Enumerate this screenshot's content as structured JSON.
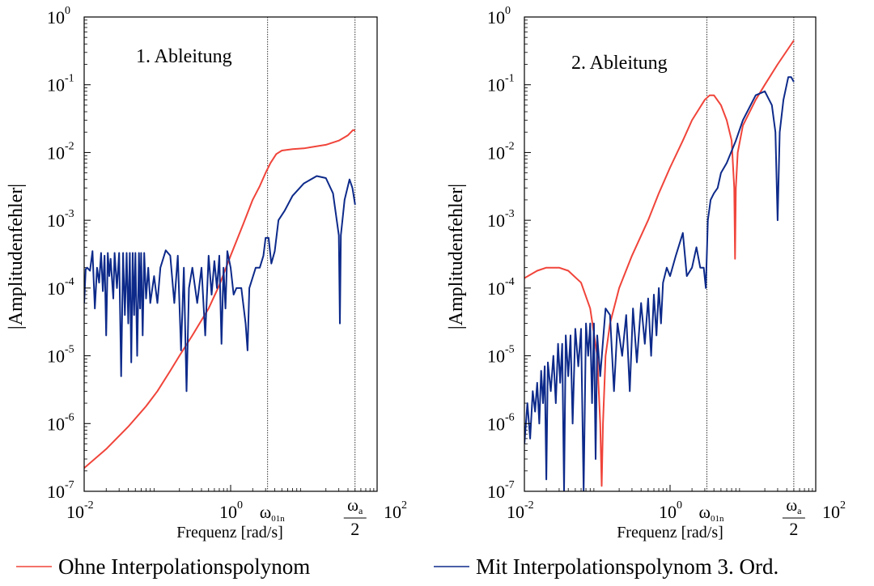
{
  "colors": {
    "red": "#f0443a",
    "blue": "#0d2a8a",
    "axis": "#000000"
  },
  "legend": [
    {
      "label": "Ohne Interpolationspolynom",
      "color": "#f0443a"
    },
    {
      "label": "Mit Interpolationspolynom 3. Ord.",
      "color": "#0d2a8a"
    }
  ],
  "chart_data": [
    {
      "type": "line",
      "title": "1. Ableitung",
      "xlabel": "Frequenz [rad/s]",
      "ylabel": "|Amplitudenfehler|",
      "xscale": "log",
      "yscale": "log",
      "xlim": [
        0.01,
        100
      ],
      "ylim": [
        1e-07,
        1
      ],
      "xticks": [
        {
          "value": 0.01,
          "base": "10",
          "exp": "-2"
        },
        {
          "value": 1,
          "base": "10",
          "exp": "0"
        },
        {
          "value": 100,
          "base": "10",
          "exp": "2"
        }
      ],
      "yticks": [
        {
          "value": 1e-07,
          "base": "10",
          "exp": "-7"
        },
        {
          "value": 1e-06,
          "base": "10",
          "exp": "-6"
        },
        {
          "value": 1e-05,
          "base": "10",
          "exp": "-5"
        },
        {
          "value": 0.0001,
          "base": "10",
          "exp": "-4"
        },
        {
          "value": 0.001,
          "base": "10",
          "exp": "-3"
        },
        {
          "value": 0.01,
          "base": "10",
          "exp": "-2"
        },
        {
          "value": 0.1,
          "base": "10",
          "exp": "-1"
        },
        {
          "value": 1,
          "base": "10",
          "exp": "0"
        }
      ],
      "markers": [
        {
          "label": "ω",
          "sub": "01n",
          "x": 3.2
        },
        {
          "label": "ω",
          "sub": "a",
          "frac": true,
          "x": 50
        }
      ],
      "series": [
        {
          "color": "#f0443a",
          "points": [
            [
              0.01,
              2.2e-07
            ],
            [
              0.02,
              4.2e-07
            ],
            [
              0.04,
              9e-07
            ],
            [
              0.07,
              1.8e-06
            ],
            [
              0.1,
              3e-06
            ],
            [
              0.15,
              6e-06
            ],
            [
              0.2,
              1e-05
            ],
            [
              0.3,
              2e-05
            ],
            [
              0.5,
              5e-05
            ],
            [
              0.7,
              0.00011
            ],
            [
              1.0,
              0.0003
            ],
            [
              1.5,
              0.0009
            ],
            [
              2.0,
              0.002
            ],
            [
              2.5,
              0.0032
            ],
            [
              3.0,
              0.005
            ],
            [
              3.5,
              0.007
            ],
            [
              4.2,
              0.0095
            ],
            [
              5.0,
              0.0107
            ],
            [
              7.0,
              0.0112
            ],
            [
              10,
              0.0115
            ],
            [
              20,
              0.013
            ],
            [
              30,
              0.015
            ],
            [
              40,
              0.018
            ],
            [
              47,
              0.0215
            ],
            [
              50,
              0.021
            ]
          ]
        },
        {
          "color": "#0d2a8a",
          "points": [
            [
              0.01,
              6e-05
            ],
            [
              0.0105,
              0.00019
            ],
            [
              0.011,
              0.0002
            ],
            [
              0.012,
              0.00018
            ],
            [
              0.013,
              0.00035
            ],
            [
              0.014,
              5e-05
            ],
            [
              0.015,
              0.0002
            ],
            [
              0.016,
              0.00012
            ],
            [
              0.017,
              0.00033
            ],
            [
              0.018,
              9e-05
            ],
            [
              0.019,
              0.0003
            ],
            [
              0.02,
              2e-05
            ],
            [
              0.021,
              0.00033
            ],
            [
              0.022,
              0.00015
            ],
            [
              0.023,
              0.00027
            ],
            [
              0.025,
              7e-05
            ],
            [
              0.026,
              0.00033
            ],
            [
              0.028,
              0.0001
            ],
            [
              0.03,
              0.00033
            ],
            [
              0.032,
              5e-06
            ],
            [
              0.034,
              0.00033
            ],
            [
              0.036,
              4e-05
            ],
            [
              0.038,
              0.00033
            ],
            [
              0.04,
              3e-05
            ],
            [
              0.042,
              0.00033
            ],
            [
              0.044,
              8e-06
            ],
            [
              0.046,
              0.00033
            ],
            [
              0.048,
              4e-05
            ],
            [
              0.05,
              0.00033
            ],
            [
              0.053,
              1e-05
            ],
            [
              0.056,
              0.00033
            ],
            [
              0.058,
              5e-05
            ],
            [
              0.06,
              0.00033
            ],
            [
              0.063,
              2e-05
            ],
            [
              0.066,
              0.00033
            ],
            [
              0.07,
              7e-05
            ],
            [
              0.075,
              0.0002
            ],
            [
              0.08,
              6e-05
            ],
            [
              0.09,
              0.00015
            ],
            [
              0.1,
              6e-05
            ],
            [
              0.11,
              0.0002
            ],
            [
              0.13,
              0.00036
            ],
            [
              0.15,
              0.0003
            ],
            [
              0.17,
              6e-05
            ],
            [
              0.19,
              0.0003
            ],
            [
              0.21,
              1.2e-05
            ],
            [
              0.23,
              0.0002
            ],
            [
              0.25,
              3e-06
            ],
            [
              0.27,
              0.0001
            ],
            [
              0.3,
              0.0002
            ],
            [
              0.35,
              6e-05
            ],
            [
              0.4,
              0.0002
            ],
            [
              0.45,
              2e-05
            ],
            [
              0.5,
              0.0003
            ],
            [
              0.55,
              8e-05
            ],
            [
              0.6,
              0.00025
            ],
            [
              0.65,
              0.0001
            ],
            [
              0.7,
              0.0003
            ],
            [
              0.75,
              1.5e-05
            ],
            [
              0.8,
              0.0002
            ],
            [
              0.85,
              5e-05
            ],
            [
              0.9,
              0.00035
            ],
            [
              1.0,
              0.0002
            ],
            [
              1.1,
              8e-05
            ],
            [
              1.2,
              0.0001
            ],
            [
              1.4,
              0.0001
            ],
            [
              1.6,
              3e-05
            ],
            [
              1.7,
              1.2e-05
            ],
            [
              1.8,
              0.0001
            ],
            [
              2.2,
              0.0002
            ],
            [
              2.5,
              0.0002
            ],
            [
              2.8,
              0.0003
            ],
            [
              3.0,
              0.00055
            ],
            [
              3.3,
              0.00055
            ],
            [
              3.6,
              0.00023
            ],
            [
              4.0,
              0.00035
            ],
            [
              4.5,
              0.001
            ],
            [
              5.5,
              0.0014
            ],
            [
              7,
              0.0023
            ],
            [
              10,
              0.0035
            ],
            [
              15,
              0.0045
            ],
            [
              20,
              0.0042
            ],
            [
              25,
              0.0025
            ],
            [
              30,
              0.0006
            ],
            [
              31,
              3e-05
            ],
            [
              32,
              0.0006
            ],
            [
              36,
              0.002
            ],
            [
              42,
              0.004
            ],
            [
              46,
              0.003
            ],
            [
              50,
              0.0017
            ]
          ]
        }
      ]
    },
    {
      "type": "line",
      "title": "2. Ableitung",
      "xlabel": "Frequenz [rad/s]",
      "ylabel": "|Amplitudenfehler|",
      "xscale": "log",
      "yscale": "log",
      "xlim": [
        0.01,
        100
      ],
      "ylim": [
        1e-07,
        1
      ],
      "xticks": [
        {
          "value": 0.01,
          "base": "10",
          "exp": "-2"
        },
        {
          "value": 1,
          "base": "10",
          "exp": "0"
        },
        {
          "value": 100,
          "base": "10",
          "exp": "2"
        }
      ],
      "yticks": [
        {
          "value": 1e-07,
          "base": "10",
          "exp": "-7"
        },
        {
          "value": 1e-06,
          "base": "10",
          "exp": "-6"
        },
        {
          "value": 1e-05,
          "base": "10",
          "exp": "-5"
        },
        {
          "value": 0.0001,
          "base": "10",
          "exp": "-4"
        },
        {
          "value": 0.001,
          "base": "10",
          "exp": "-3"
        },
        {
          "value": 0.01,
          "base": "10",
          "exp": "-2"
        },
        {
          "value": 0.1,
          "base": "10",
          "exp": "-1"
        },
        {
          "value": 1,
          "base": "10",
          "exp": "0"
        }
      ],
      "markers": [
        {
          "label": "ω",
          "sub": "01n",
          "x": 3.2
        },
        {
          "label": "ω",
          "sub": "a",
          "frac": true,
          "x": 50
        }
      ],
      "series": [
        {
          "color": "#f0443a",
          "points": [
            [
              0.01,
              0.00014
            ],
            [
              0.015,
              0.00018
            ],
            [
              0.02,
              0.0002
            ],
            [
              0.03,
              0.0002
            ],
            [
              0.04,
              0.00018
            ],
            [
              0.06,
              0.00012
            ],
            [
              0.08,
              5e-05
            ],
            [
              0.1,
              1e-05
            ],
            [
              0.11,
              1e-06
            ],
            [
              0.115,
              1.2e-07
            ],
            [
              0.12,
              1e-06
            ],
            [
              0.13,
              1e-05
            ],
            [
              0.15,
              3e-05
            ],
            [
              0.2,
              0.0001
            ],
            [
              0.3,
              0.0003
            ],
            [
              0.5,
              0.001
            ],
            [
              0.7,
              0.0025
            ],
            [
              1.0,
              0.006
            ],
            [
              1.5,
              0.015
            ],
            [
              2.0,
              0.03
            ],
            [
              3.0,
              0.06
            ],
            [
              3.5,
              0.07
            ],
            [
              4.0,
              0.07
            ],
            [
              5.0,
              0.05
            ],
            [
              6.0,
              0.03
            ],
            [
              7.0,
              0.015
            ],
            [
              7.6,
              0.003
            ],
            [
              7.8,
              0.00027
            ],
            [
              8.0,
              0.003
            ],
            [
              8.5,
              0.01
            ],
            [
              10,
              0.025
            ],
            [
              15,
              0.06
            ],
            [
              20,
              0.1
            ],
            [
              30,
              0.2
            ],
            [
              50,
              0.45
            ]
          ]
        },
        {
          "color": "#0d2a8a",
          "points": [
            [
              0.01,
              5e-07
            ],
            [
              0.011,
              2e-06
            ],
            [
              0.012,
              6e-07
            ],
            [
              0.013,
              3e-06
            ],
            [
              0.014,
              1.5e-06
            ],
            [
              0.015,
              4e-06
            ],
            [
              0.016,
              1e-06
            ],
            [
              0.017,
              6e-06
            ],
            [
              0.018,
              2e-06
            ],
            [
              0.019,
              7e-06
            ],
            [
              0.02,
              1.5e-07
            ],
            [
              0.021,
              8e-06
            ],
            [
              0.023,
              3e-06
            ],
            [
              0.025,
              1e-05
            ],
            [
              0.027,
              2e-06
            ],
            [
              0.029,
              1.5e-05
            ],
            [
              0.031,
              4e-06
            ],
            [
              0.033,
              1.5e-05
            ],
            [
              0.035,
              1e-07
            ],
            [
              0.037,
              2e-05
            ],
            [
              0.04,
              5e-06
            ],
            [
              0.043,
              2e-05
            ],
            [
              0.046,
              1e-06
            ],
            [
              0.05,
              2.5e-05
            ],
            [
              0.055,
              7e-06
            ],
            [
              0.06,
              2.5e-05
            ],
            [
              0.065,
              1e-07
            ],
            [
              0.07,
              3e-05
            ],
            [
              0.075,
              1e-05
            ],
            [
              0.08,
              3e-05
            ],
            [
              0.085,
              2e-06
            ],
            [
              0.09,
              3e-05
            ],
            [
              0.095,
              3e-07
            ],
            [
              0.1,
              2e-05
            ],
            [
              0.11,
              5e-06
            ],
            [
              0.13,
              5e-05
            ],
            [
              0.15,
              4e-05
            ],
            [
              0.17,
              3e-06
            ],
            [
              0.19,
              3e-05
            ],
            [
              0.22,
              1e-05
            ],
            [
              0.25,
              4e-05
            ],
            [
              0.28,
              3e-06
            ],
            [
              0.31,
              5e-05
            ],
            [
              0.35,
              8e-06
            ],
            [
              0.4,
              6e-05
            ],
            [
              0.45,
              1.5e-05
            ],
            [
              0.5,
              7e-05
            ],
            [
              0.55,
              1e-05
            ],
            [
              0.6,
              8e-05
            ],
            [
              0.65,
              2e-05
            ],
            [
              0.7,
              0.0001
            ],
            [
              0.75,
              3e-05
            ],
            [
              0.8,
              0.00012
            ],
            [
              0.9,
              0.0002
            ],
            [
              1.0,
              0.00015
            ],
            [
              1.2,
              0.0003
            ],
            [
              1.5,
              0.00065
            ],
            [
              1.7,
              0.00015
            ],
            [
              2.0,
              0.0002
            ],
            [
              2.3,
              0.0004
            ],
            [
              2.6,
              0.0002
            ],
            [
              2.9,
              0.0002
            ],
            [
              3.1,
              0.0001
            ],
            [
              3.3,
              0.001
            ],
            [
              3.6,
              0.002
            ],
            [
              4.0,
              0.0025
            ],
            [
              4.5,
              0.003
            ],
            [
              5.0,
              0.005
            ],
            [
              6.0,
              0.007
            ],
            [
              8.0,
              0.015
            ],
            [
              10,
              0.03
            ],
            [
              15,
              0.07
            ],
            [
              20,
              0.08
            ],
            [
              25,
              0.05
            ],
            [
              28,
              0.02
            ],
            [
              30,
              0.001
            ],
            [
              32,
              0.02
            ],
            [
              36,
              0.06
            ],
            [
              42,
              0.13
            ],
            [
              46,
              0.13
            ],
            [
              50,
              0.11
            ]
          ]
        }
      ]
    }
  ]
}
